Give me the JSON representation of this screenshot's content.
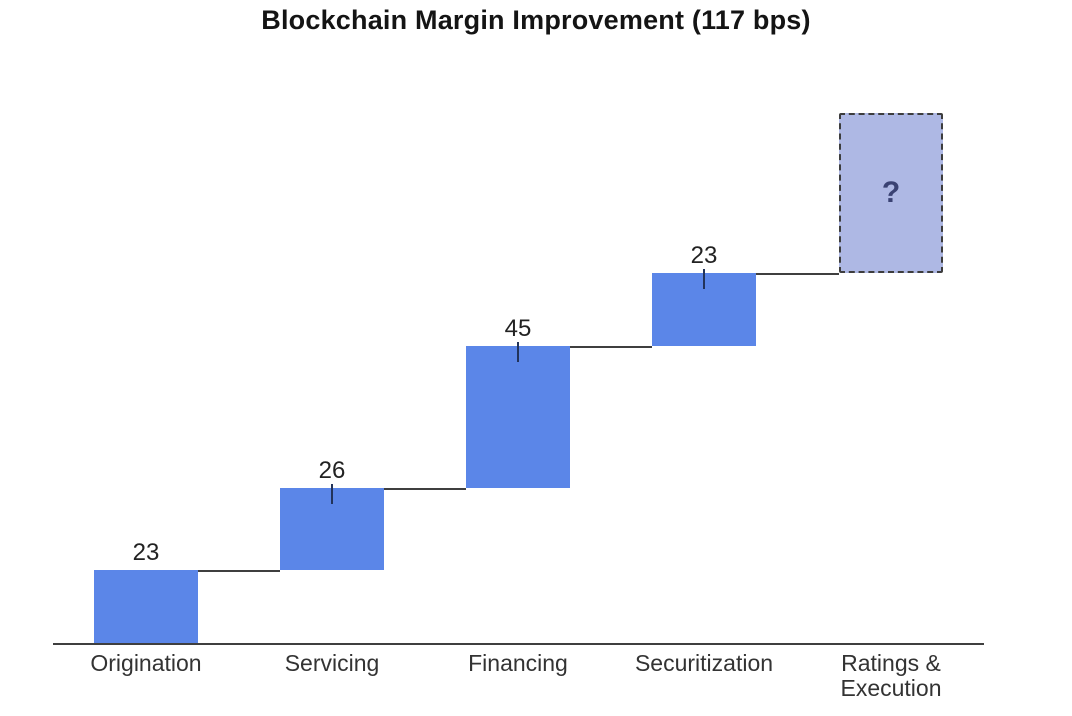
{
  "chart_data": {
    "type": "bar",
    "subtype": "waterfall",
    "title": "Blockchain Margin Improvement (117 bps)",
    "total_bps": 117,
    "xlabel": "",
    "ylabel": "",
    "categories": [
      "Origination",
      "Servicing",
      "Financing",
      "Securitization",
      "Ratings & Execution"
    ],
    "values": [
      23,
      26,
      45,
      23,
      null
    ],
    "steps": [
      {
        "category": "Origination",
        "value": 23,
        "label": "23",
        "style": "solid",
        "tick": false
      },
      {
        "category": "Servicing",
        "value": 26,
        "label": "26",
        "style": "solid",
        "tick": true
      },
      {
        "category": "Financing",
        "value": 45,
        "label": "45",
        "style": "solid",
        "tick": true
      },
      {
        "category": "Securitization",
        "value": 23,
        "label": "23",
        "style": "solid",
        "tick": true
      },
      {
        "category": "Ratings & Execution",
        "value": null,
        "label": "?",
        "style": "dashed",
        "tick": false
      }
    ],
    "legend": "none",
    "axis": {
      "baseline_visible": true,
      "gridlines": false,
      "y_ticks_visible": false
    },
    "colors": {
      "bar": "#5b86e8",
      "unknown_fill": "#aeb8e4",
      "unknown_border": "#3d3d3d",
      "line": "#3f3f3f",
      "value_text": "#222222",
      "category_text": "#333333",
      "question_text": "#3a4273",
      "tick": "#22335a",
      "title_text": "#141414",
      "background": "#ffffff"
    }
  }
}
